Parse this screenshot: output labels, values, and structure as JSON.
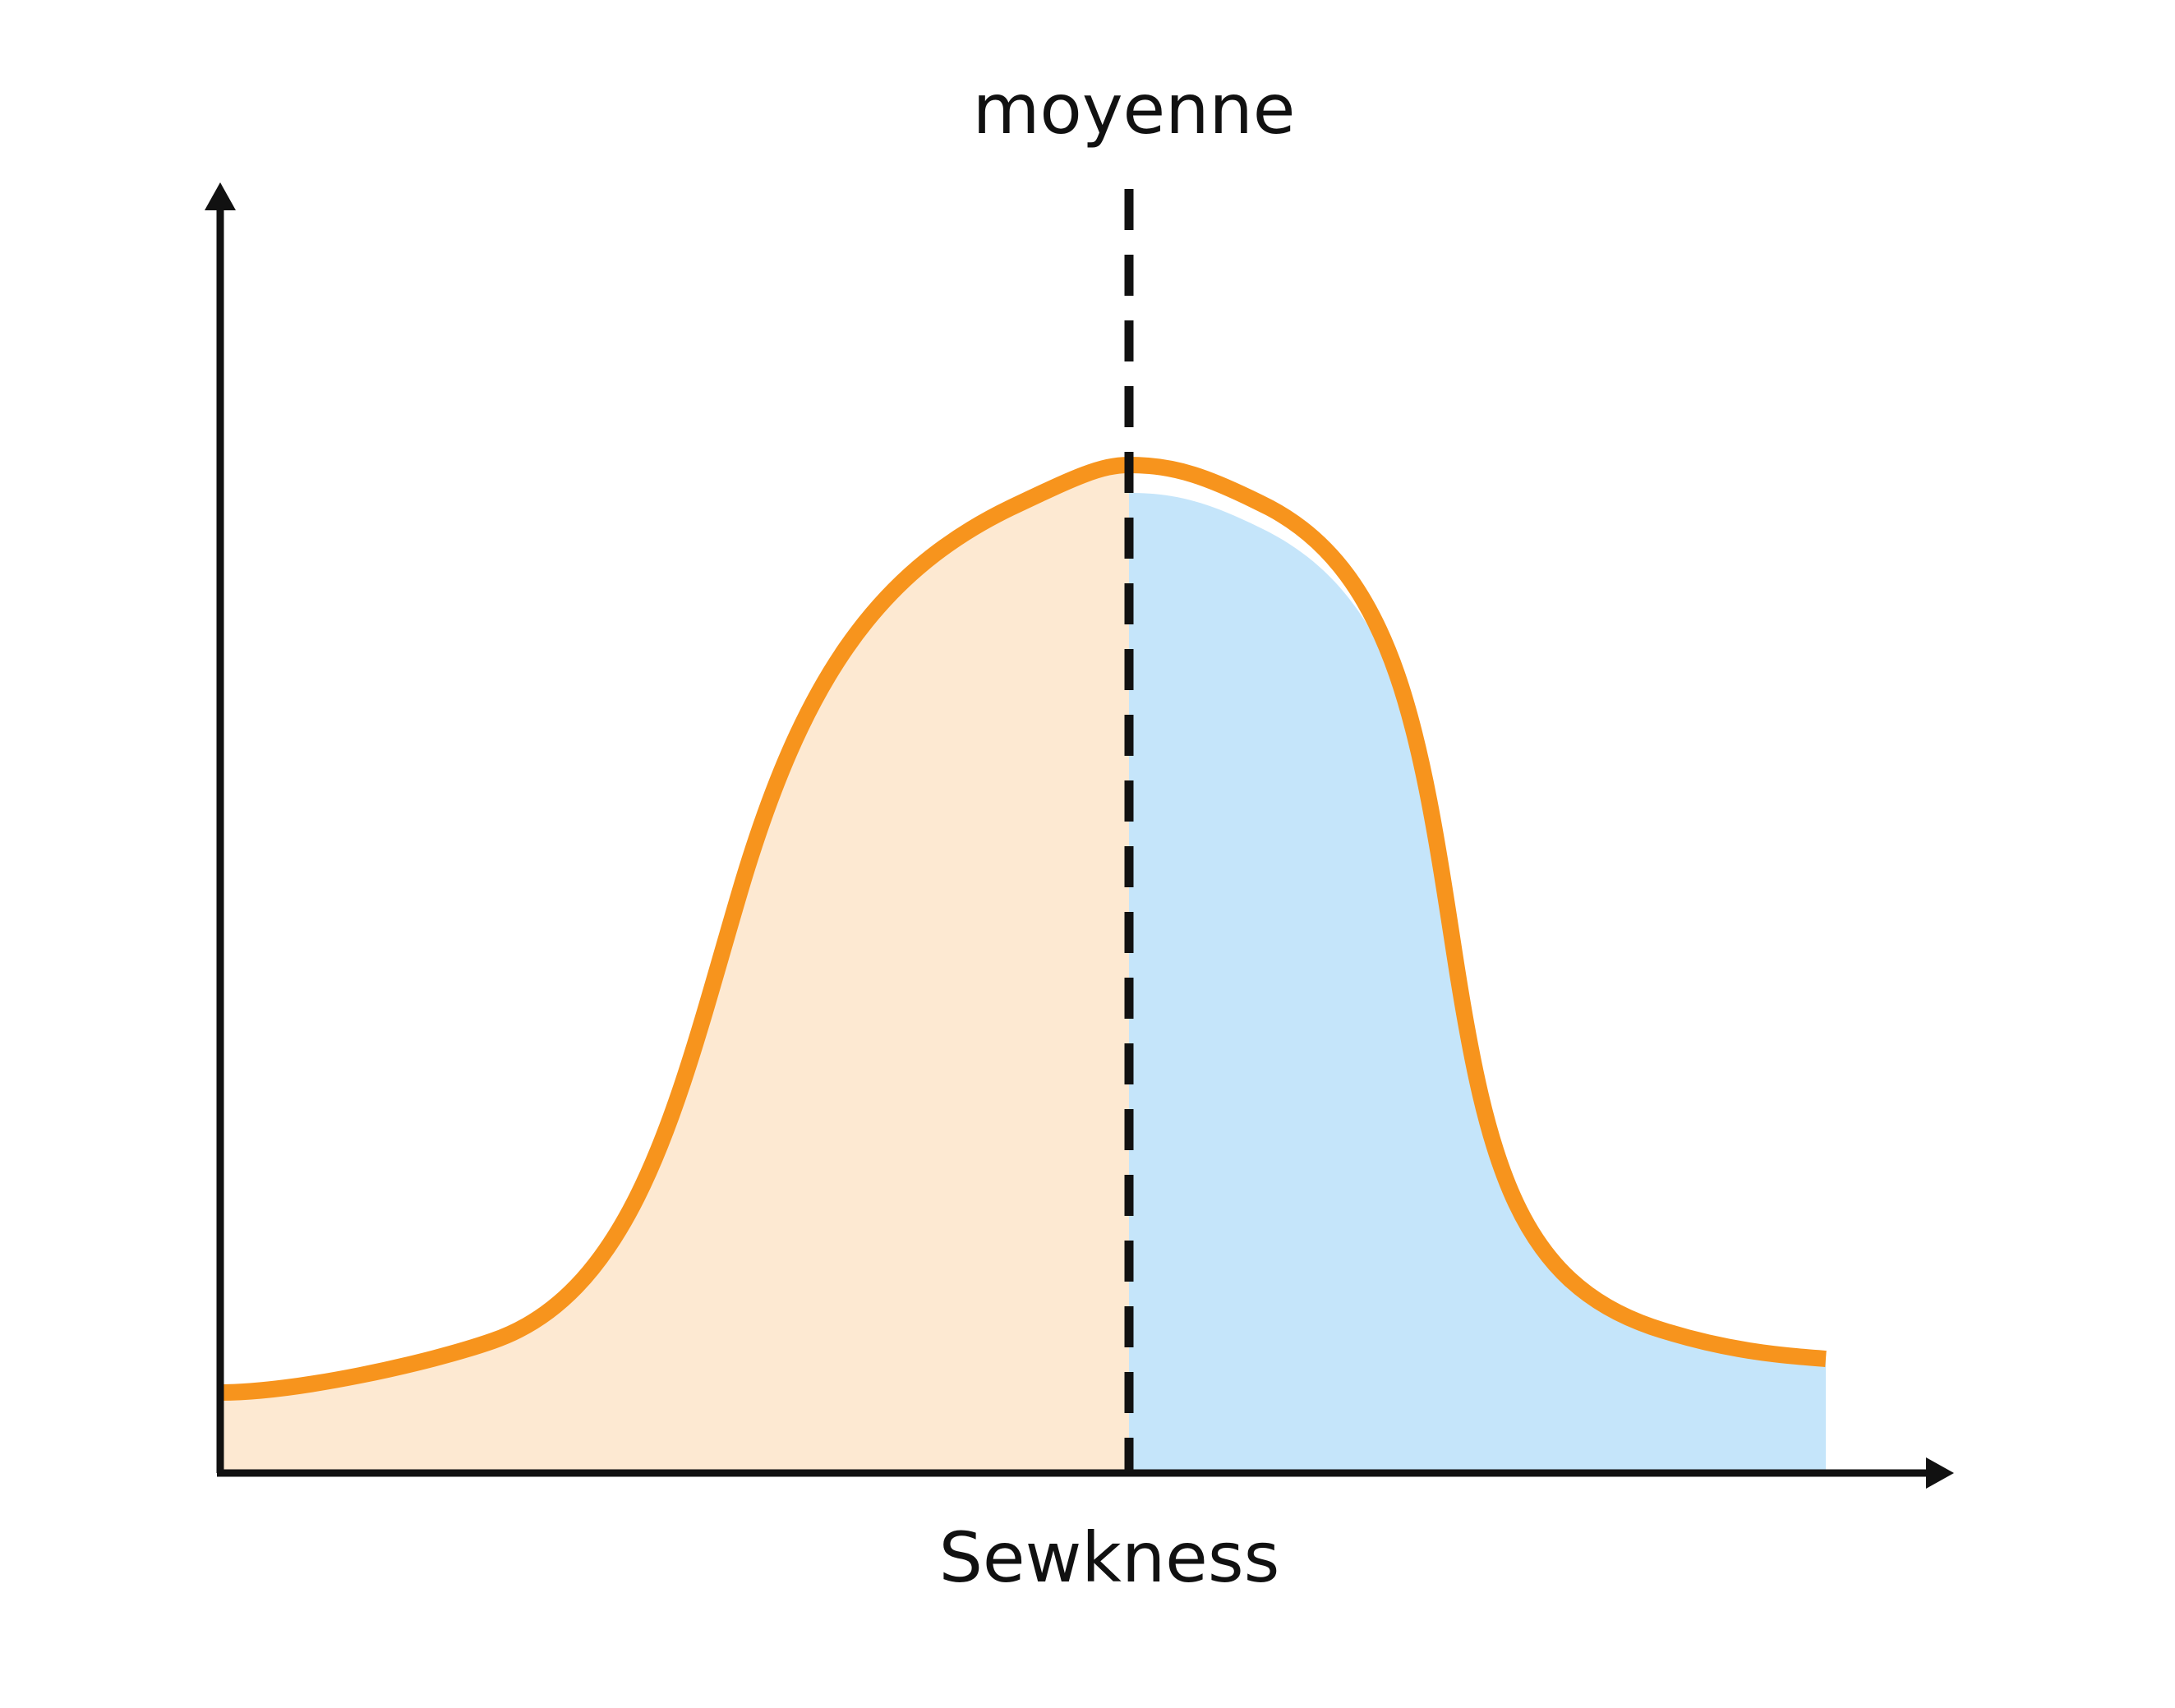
{
  "diagram": {
    "mean_label": "moyenne",
    "x_axis_label": "Sewkness"
  },
  "colors": {
    "curve": "#F7941D",
    "left_fill": "#FDE9D2",
    "right_fill": "#C5E5FA",
    "axis": "#111111",
    "mean_line": "#111111"
  }
}
